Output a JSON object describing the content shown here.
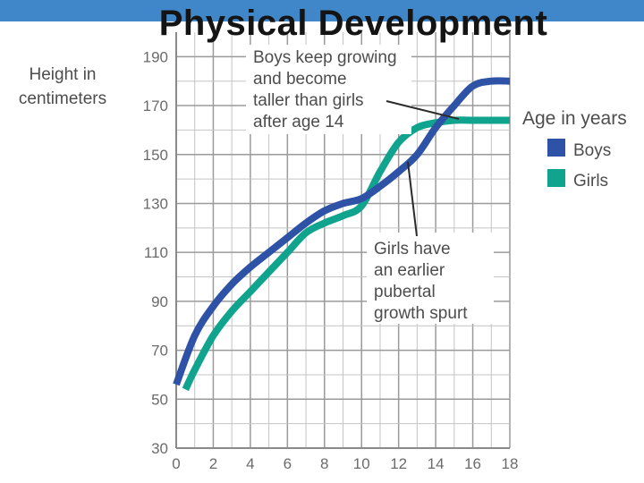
{
  "slide": {
    "title": "Physical Development"
  },
  "chart_data": {
    "type": "line",
    "title": "",
    "xlabel": "Age in years",
    "ylabel_lines": [
      "Height in",
      "centimeters"
    ],
    "xlim": [
      0,
      18
    ],
    "ylim": [
      30,
      200
    ],
    "x_ticks": [
      0,
      2,
      4,
      6,
      8,
      10,
      12,
      14,
      16,
      18
    ],
    "y_ticks": [
      30,
      50,
      70,
      90,
      110,
      130,
      150,
      170,
      190
    ],
    "grid": true,
    "legend_position": "right",
    "series": [
      {
        "name": "Boys",
        "color": "#2e52a6",
        "x": [
          0,
          1,
          2,
          3,
          4,
          5,
          6,
          7,
          8,
          9,
          10,
          11,
          12,
          13,
          14,
          15,
          16,
          17,
          18
        ],
        "y": [
          56,
          76,
          88,
          97,
          104,
          110,
          116,
          122,
          127,
          130,
          132,
          137,
          143,
          150,
          161,
          170,
          178,
          180,
          180
        ]
      },
      {
        "name": "Girls",
        "color": "#10a38e",
        "x": [
          0.5,
          1,
          2,
          3,
          4,
          5,
          6,
          7,
          8,
          9,
          10,
          11,
          12,
          13,
          14,
          15,
          16,
          17,
          18
        ],
        "y": [
          54,
          62,
          76,
          86,
          94,
          102,
          110,
          118,
          122,
          125,
          129,
          143,
          155,
          161,
          163,
          164,
          164,
          164,
          164
        ]
      }
    ],
    "annotations": [
      {
        "id": "boys-taller",
        "lines": [
          "Boys keep growing",
          "and become",
          "taller than girls",
          "after age 14"
        ]
      },
      {
        "id": "girls-spurt",
        "lines": [
          "Girls have",
          "an earlier",
          "pubertal",
          "growth spurt"
        ]
      }
    ]
  }
}
